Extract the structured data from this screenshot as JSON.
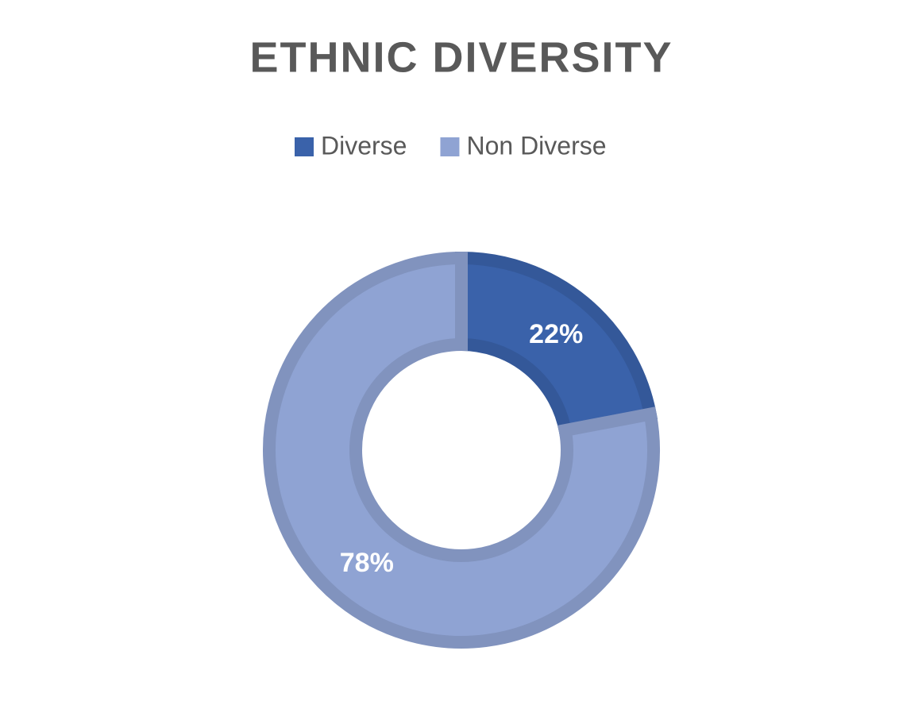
{
  "chart_data": {
    "type": "donut",
    "title": "ETHNIC DIVERSITY",
    "categories": [
      "Diverse",
      "Non Diverse"
    ],
    "values": [
      22,
      78
    ],
    "value_labels": [
      "22%",
      "78%"
    ],
    "colors": [
      "#3a62aa",
      "#8fa3d3"
    ]
  }
}
